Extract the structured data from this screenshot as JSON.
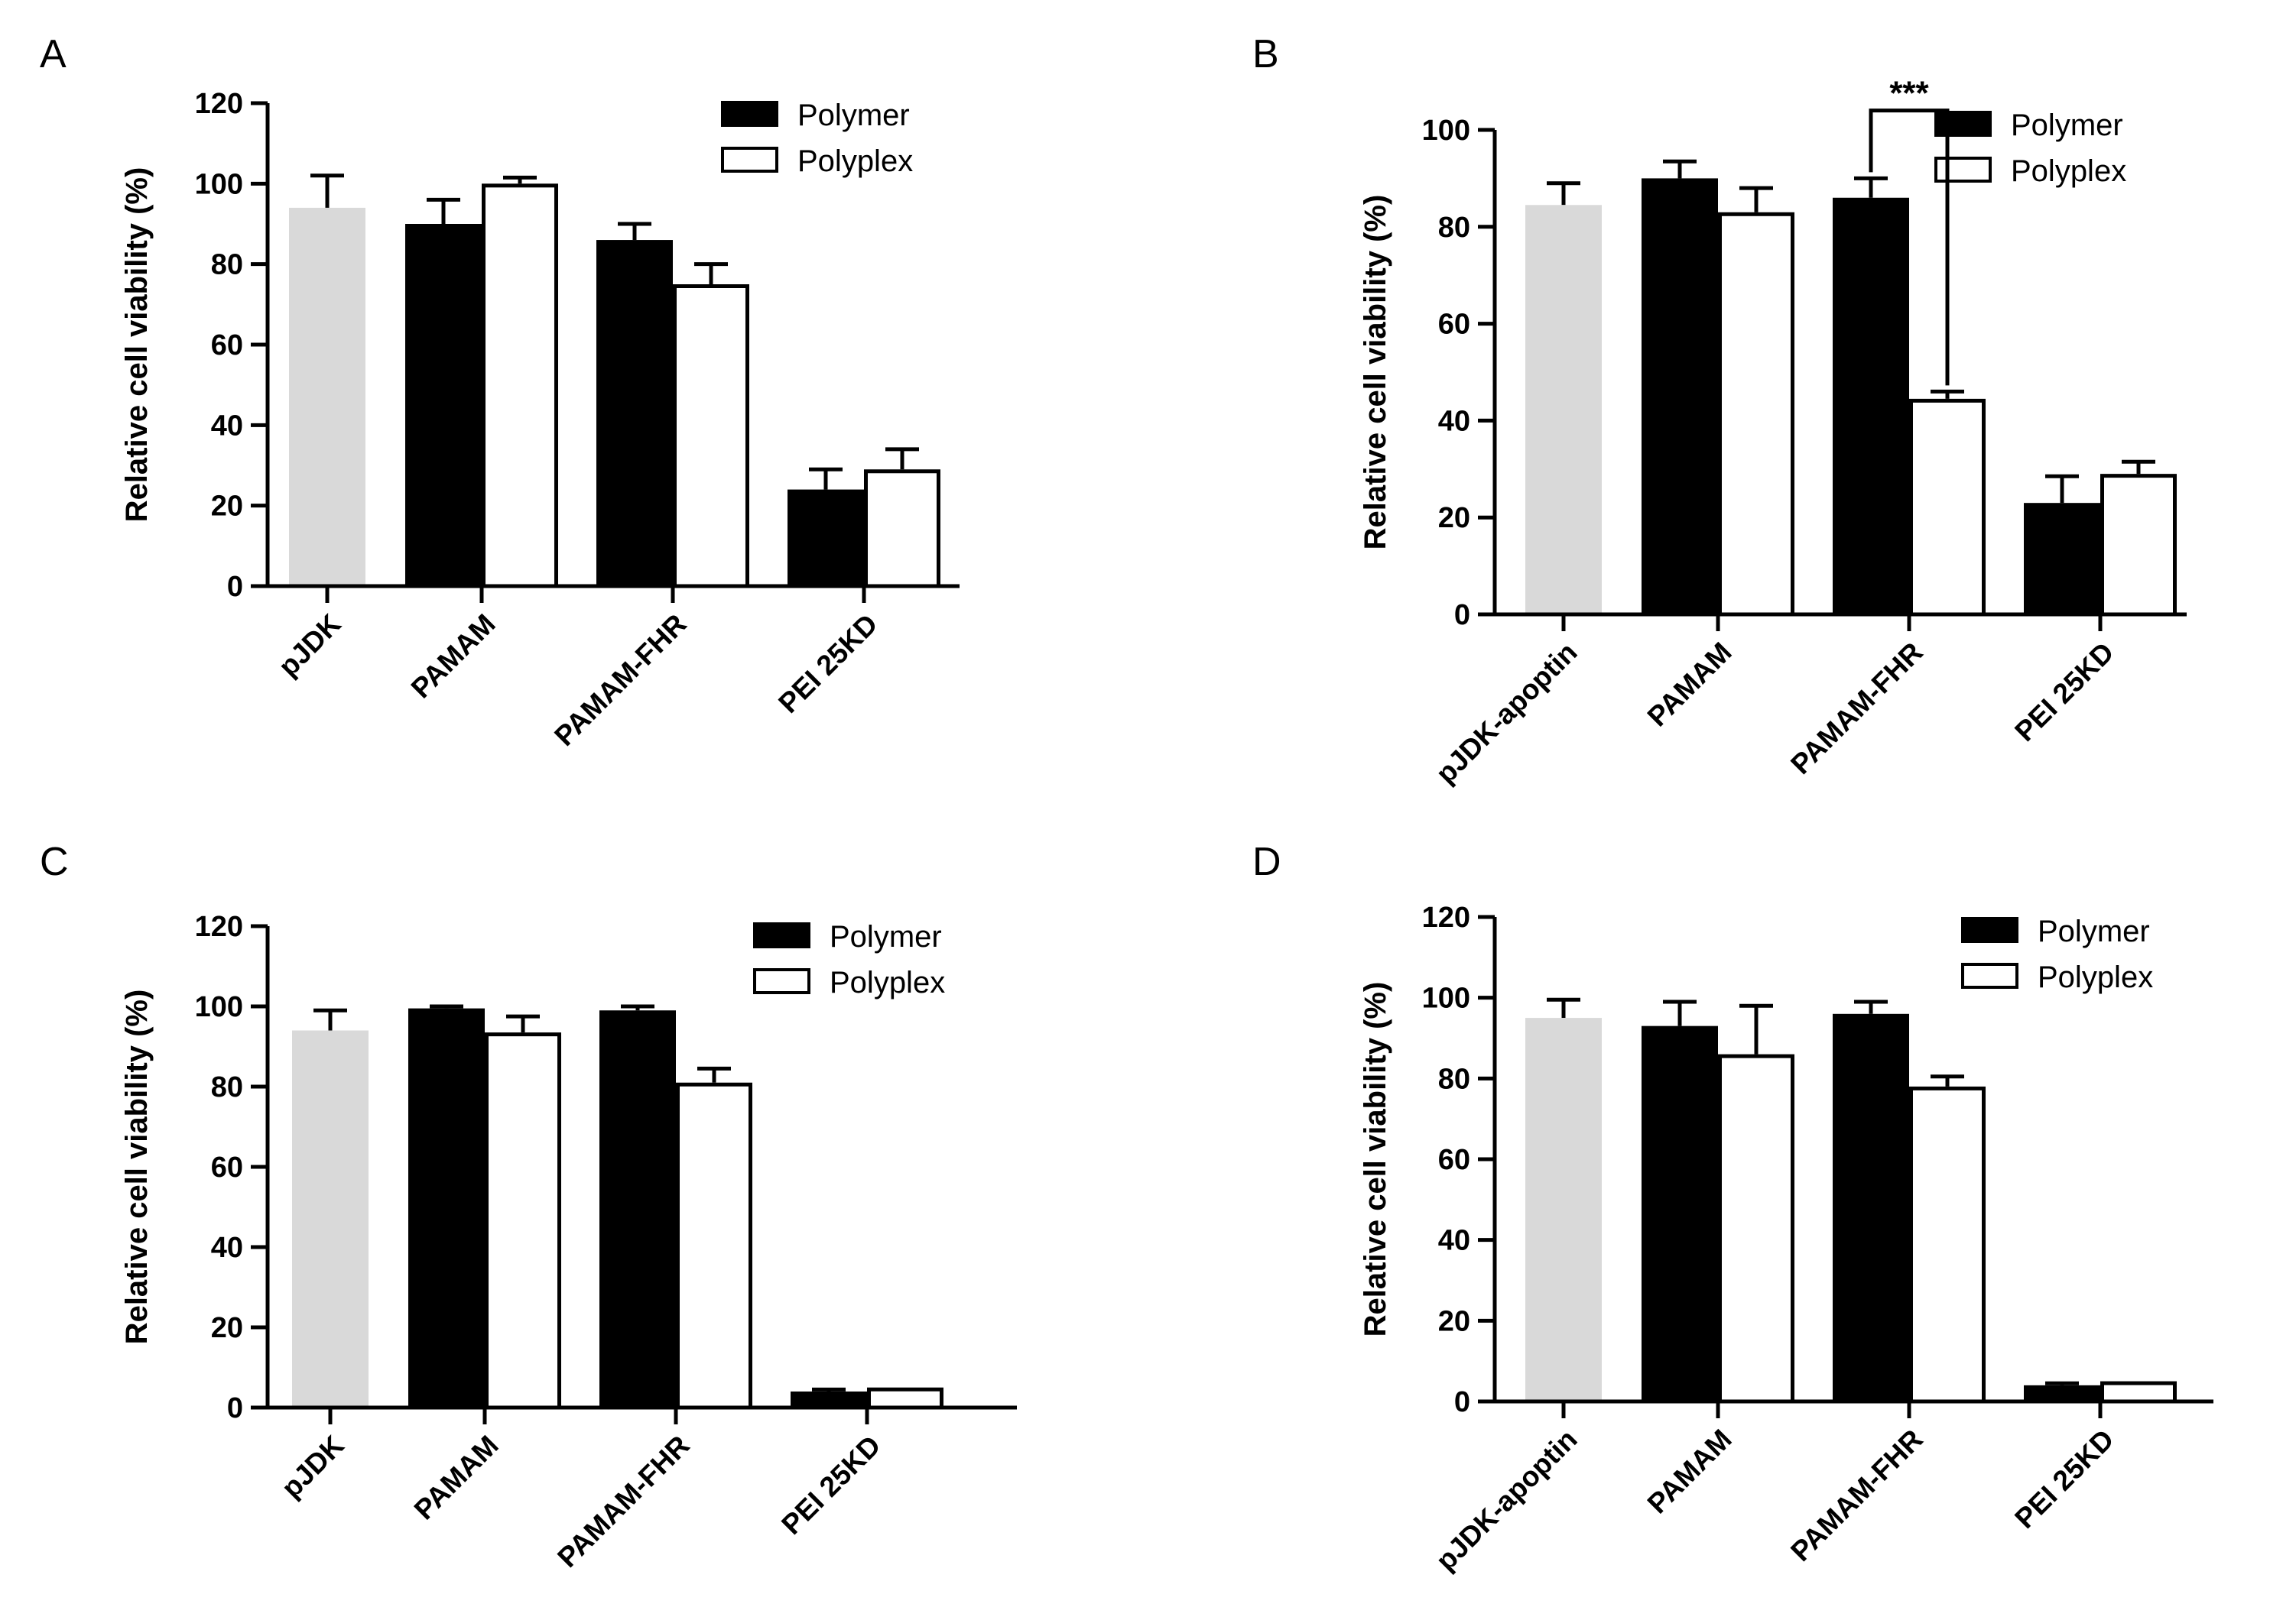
{
  "chart_data": [
    {
      "panel_label": "A",
      "type": "bar",
      "ylabel": "Relative cell viability (%)",
      "ylim": [
        0,
        120
      ],
      "yticks": [
        0,
        20,
        40,
        60,
        80,
        100,
        120
      ],
      "categories": [
        "pJDK",
        "PAMAM",
        "PAMAM-FHR",
        "PEI 25KD"
      ],
      "control": {
        "category": "pJDK",
        "value": 94,
        "error": 8,
        "color": "#d9d9d9"
      },
      "series": [
        {
          "name": "Polymer",
          "fill": "#000000",
          "values": [
            null,
            90,
            86,
            24
          ],
          "errors": [
            null,
            6,
            4,
            5
          ]
        },
        {
          "name": "Polyplex",
          "fill": "#ffffff",
          "values": [
            null,
            100,
            75,
            29
          ],
          "errors": [
            null,
            1.5,
            5,
            5
          ]
        }
      ],
      "legend": [
        "Polymer",
        "Polyplex"
      ],
      "legend_position": "top-right",
      "annotations": []
    },
    {
      "panel_label": "B",
      "type": "bar",
      "ylabel": "Relative cell viability (%)",
      "ylim": [
        0,
        100
      ],
      "yticks": [
        0,
        20,
        40,
        60,
        80,
        100
      ],
      "categories": [
        "pJDK-apoptin",
        "PAMAM",
        "PAMAM-FHR",
        "PEI 25KD"
      ],
      "control": {
        "category": "pJDK-apoptin",
        "value": 84.5,
        "error": 4.5,
        "color": "#d9d9d9"
      },
      "series": [
        {
          "name": "Polymer",
          "fill": "#000000",
          "values": [
            null,
            90,
            86,
            23
          ],
          "errors": [
            null,
            3.5,
            4,
            5.5
          ]
        },
        {
          "name": "Polyplex",
          "fill": "#ffffff",
          "values": [
            null,
            83,
            44.5,
            29
          ],
          "errors": [
            null,
            5,
            1.5,
            2.5
          ]
        }
      ],
      "legend": [
        "Polymer",
        "Polyplex"
      ],
      "legend_position": "top-right",
      "annotations": [
        {
          "text": "***",
          "category": "PAMAM-FHR",
          "between": [
            "Polymer",
            "Polyplex"
          ],
          "y": 104
        }
      ]
    },
    {
      "panel_label": "C",
      "type": "bar",
      "ylabel": "Relative cell viability (%)",
      "ylim": [
        0,
        120
      ],
      "yticks": [
        0,
        20,
        40,
        60,
        80,
        100,
        120
      ],
      "categories": [
        "pJDK",
        "PAMAM",
        "PAMAM-FHR",
        "PEI 25KD"
      ],
      "control": {
        "category": "pJDK",
        "value": 94,
        "error": 5,
        "color": "#d9d9d9"
      },
      "series": [
        {
          "name": "Polymer",
          "fill": "#000000",
          "values": [
            null,
            99.5,
            99,
            4
          ],
          "errors": [
            null,
            0.5,
            1,
            0.5
          ]
        },
        {
          "name": "Polyplex",
          "fill": "#ffffff",
          "values": [
            null,
            93.5,
            81,
            5
          ],
          "errors": [
            null,
            4,
            3.5,
            0
          ]
        }
      ],
      "legend": [
        "Polymer",
        "Polyplex"
      ],
      "legend_position": "top-right",
      "annotations": []
    },
    {
      "panel_label": "D",
      "type": "bar",
      "ylabel": "Relative cell viability (%)",
      "ylim": [
        0,
        120
      ],
      "yticks": [
        0,
        20,
        40,
        60,
        80,
        100,
        120
      ],
      "categories": [
        "pJDK-apoptin",
        "PAMAM",
        "PAMAM-FHR",
        "PEI 25KD"
      ],
      "control": {
        "category": "pJDK-apoptin",
        "value": 95,
        "error": 4.5,
        "color": "#d9d9d9"
      },
      "series": [
        {
          "name": "Polymer",
          "fill": "#000000",
          "values": [
            null,
            93,
            96,
            4
          ],
          "errors": [
            null,
            6,
            3,
            0.5
          ]
        },
        {
          "name": "Polyplex",
          "fill": "#ffffff",
          "values": [
            null,
            86,
            78,
            5
          ],
          "errors": [
            null,
            12,
            2.5,
            0
          ]
        }
      ],
      "legend": [
        "Polymer",
        "Polyplex"
      ],
      "legend_position": "top-right",
      "annotations": []
    }
  ]
}
